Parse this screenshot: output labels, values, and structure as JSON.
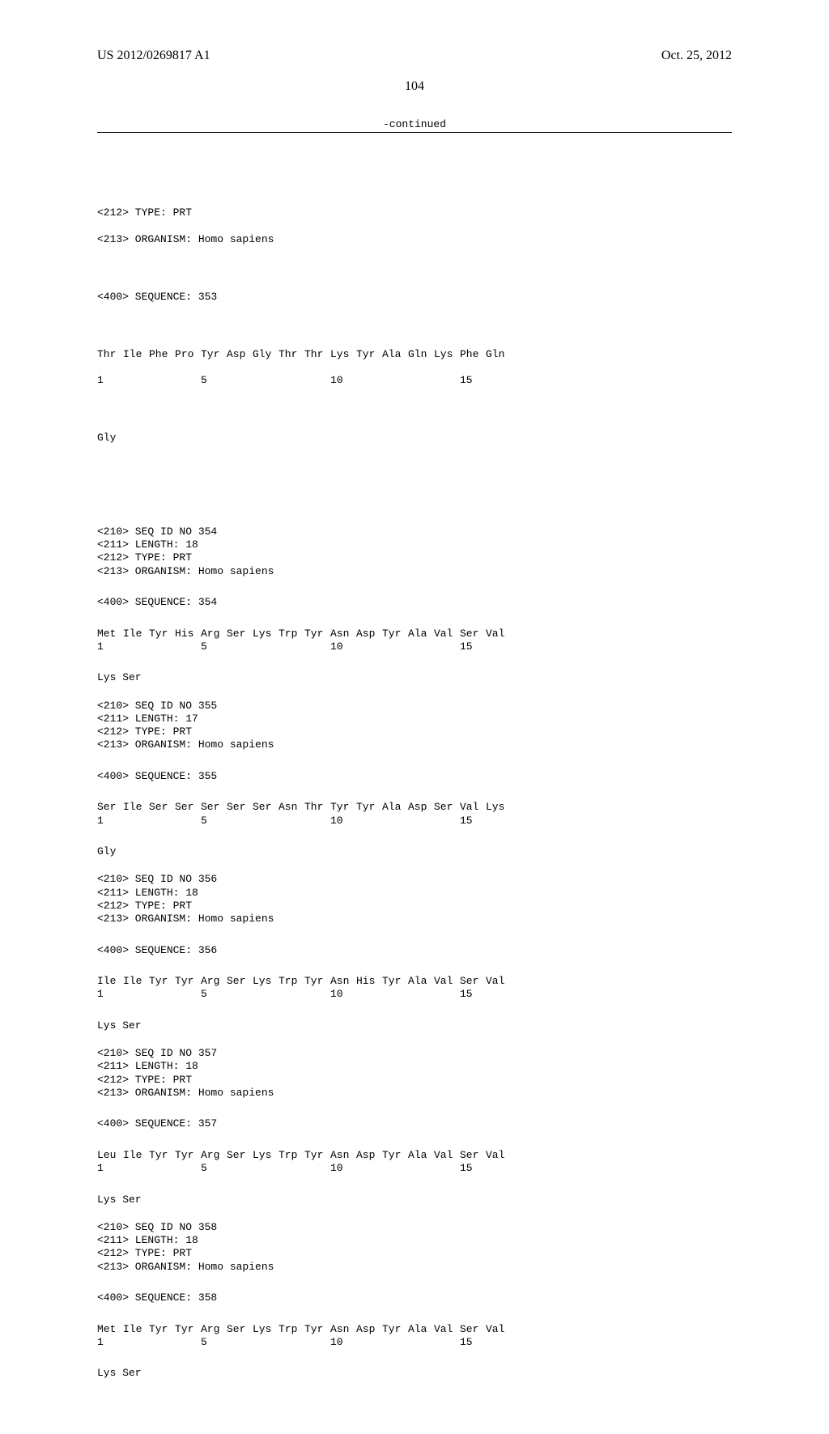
{
  "header": {
    "pub_number": "US 2012/0269817 A1",
    "pub_date": "Oct. 25, 2012"
  },
  "page_number": "104",
  "continued_label": "-continued",
  "intro": {
    "type_line": "<212> TYPE: PRT",
    "organism_line": "<213> ORGANISM: Homo sapiens",
    "seq_label": "<400> SEQUENCE: 353",
    "aa": [
      "Thr",
      "Ile",
      "Phe",
      "Pro",
      "Tyr",
      "Asp",
      "Gly",
      "Thr",
      "Thr",
      "Lys",
      "Tyr",
      "Ala",
      "Gln",
      "Lys",
      "Phe",
      "Gln"
    ],
    "pos": [
      "1",
      "",
      "",
      "",
      "5",
      "",
      "",
      "",
      "",
      "10",
      "",
      "",
      "",
      "",
      "15",
      ""
    ],
    "tail": "Gly"
  },
  "entries": [
    {
      "id": "354",
      "length": "18",
      "aa": [
        "Met",
        "Ile",
        "Tyr",
        "His",
        "Arg",
        "Ser",
        "Lys",
        "Trp",
        "Tyr",
        "Asn",
        "Asp",
        "Tyr",
        "Ala",
        "Val",
        "Ser",
        "Val"
      ],
      "pos": [
        "1",
        "",
        "",
        "",
        "5",
        "",
        "",
        "",
        "",
        "10",
        "",
        "",
        "",
        "",
        "15",
        ""
      ],
      "tail": "Lys Ser"
    },
    {
      "id": "355",
      "length": "17",
      "aa": [
        "Ser",
        "Ile",
        "Ser",
        "Ser",
        "Ser",
        "Ser",
        "Ser",
        "Asn",
        "Thr",
        "Tyr",
        "Tyr",
        "Ala",
        "Asp",
        "Ser",
        "Val",
        "Lys"
      ],
      "pos": [
        "1",
        "",
        "",
        "",
        "5",
        "",
        "",
        "",
        "",
        "10",
        "",
        "",
        "",
        "",
        "15",
        ""
      ],
      "tail": "Gly"
    },
    {
      "id": "356",
      "length": "18",
      "aa": [
        "Ile",
        "Ile",
        "Tyr",
        "Tyr",
        "Arg",
        "Ser",
        "Lys",
        "Trp",
        "Tyr",
        "Asn",
        "His",
        "Tyr",
        "Ala",
        "Val",
        "Ser",
        "Val"
      ],
      "pos": [
        "1",
        "",
        "",
        "",
        "5",
        "",
        "",
        "",
        "",
        "10",
        "",
        "",
        "",
        "",
        "15",
        ""
      ],
      "tail": "Lys Ser"
    },
    {
      "id": "357",
      "length": "18",
      "aa": [
        "Leu",
        "Ile",
        "Tyr",
        "Tyr",
        "Arg",
        "Ser",
        "Lys",
        "Trp",
        "Tyr",
        "Asn",
        "Asp",
        "Tyr",
        "Ala",
        "Val",
        "Ser",
        "Val"
      ],
      "pos": [
        "1",
        "",
        "",
        "",
        "5",
        "",
        "",
        "",
        "",
        "10",
        "",
        "",
        "",
        "",
        "15",
        ""
      ],
      "tail": "Lys Ser"
    },
    {
      "id": "358",
      "length": "18",
      "aa": [
        "Met",
        "Ile",
        "Tyr",
        "Tyr",
        "Arg",
        "Ser",
        "Lys",
        "Trp",
        "Tyr",
        "Asn",
        "Asp",
        "Tyr",
        "Ala",
        "Val",
        "Ser",
        "Val"
      ],
      "pos": [
        "1",
        "",
        "",
        "",
        "5",
        "",
        "",
        "",
        "",
        "10",
        "",
        "",
        "",
        "",
        "15",
        ""
      ],
      "tail": "Lys Ser"
    }
  ],
  "labels": {
    "seq_id_prefix": "<210> SEQ ID NO ",
    "length_prefix": "<211> LENGTH: ",
    "type_line": "<212> TYPE: PRT",
    "organism_line": "<213> ORGANISM: Homo sapiens",
    "sequence_prefix": "<400> SEQUENCE: "
  }
}
